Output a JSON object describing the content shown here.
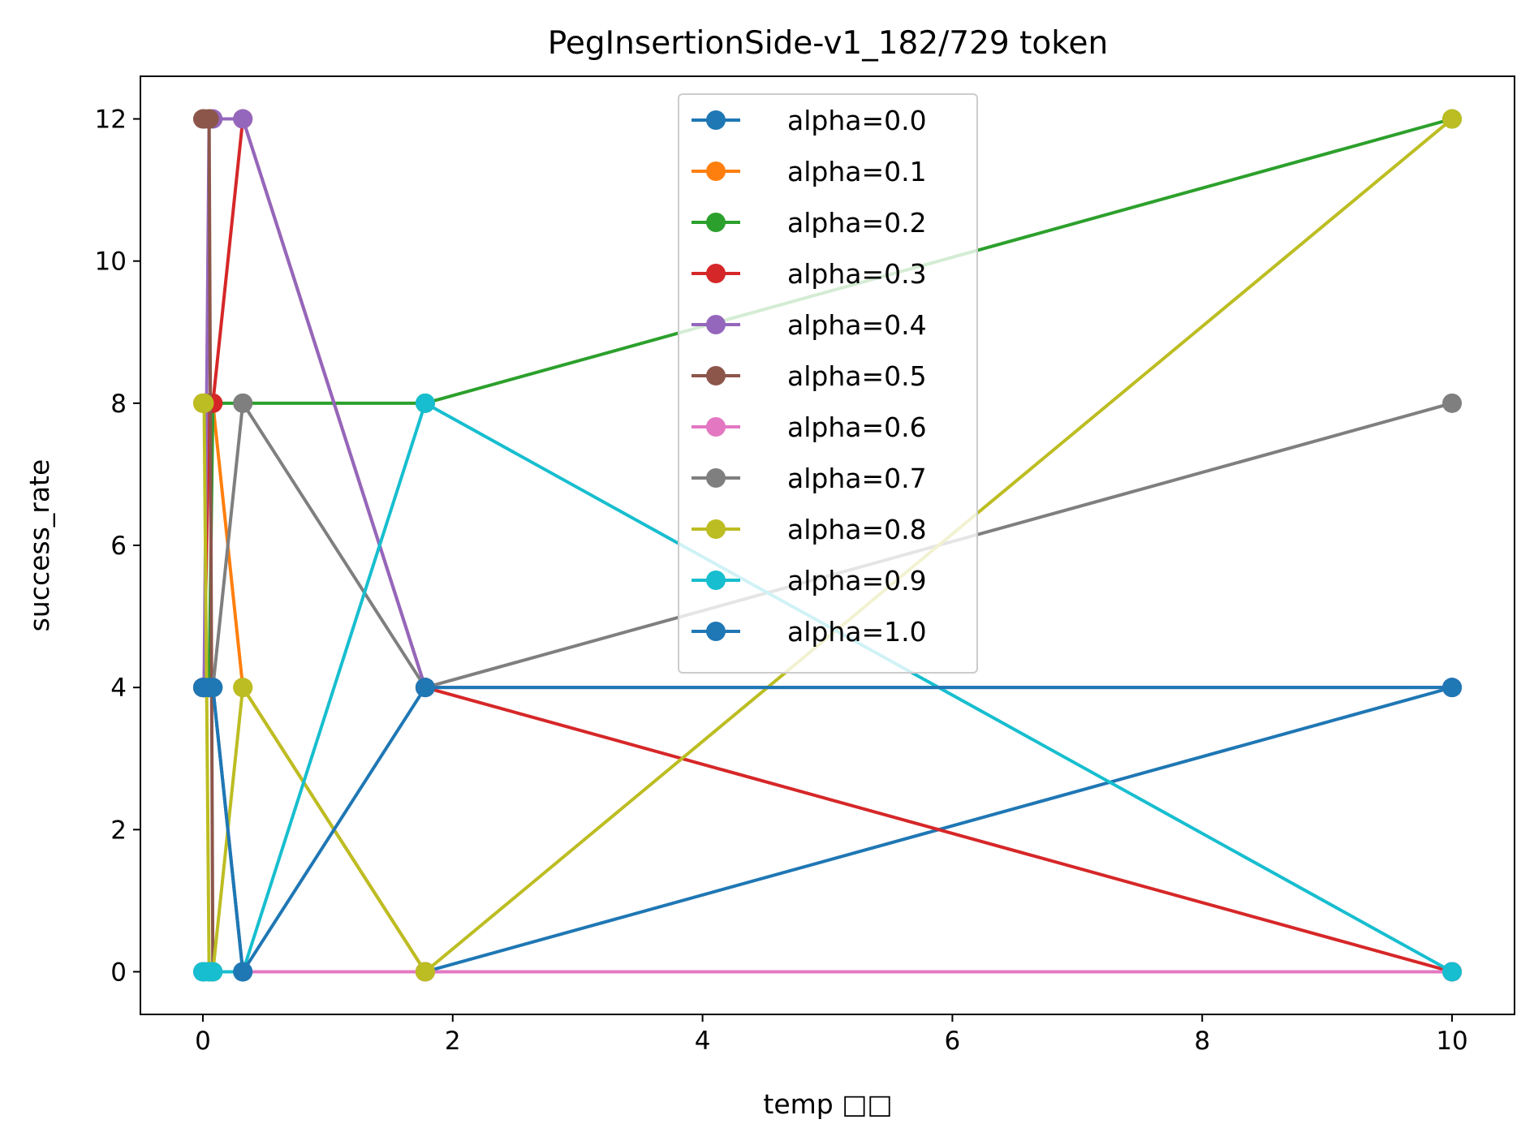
{
  "chart_data": {
    "type": "line",
    "title": "PegInsertionSide-v1_182/729 token",
    "xlabel": "temp □□",
    "ylabel": "success_rate",
    "xlim": [
      -0.5,
      10.5
    ],
    "ylim": [
      -0.6,
      12.6
    ],
    "xticks": [
      0,
      2,
      4,
      6,
      8,
      10
    ],
    "yticks": [
      0,
      2,
      4,
      6,
      8,
      10,
      12
    ],
    "grid": false,
    "legend_position": "top-center",
    "x": [
      0,
      0.01,
      0.05,
      0.08,
      0.32,
      1.78,
      10
    ],
    "series": [
      {
        "name": "alpha=0.0",
        "color": "#1f77b4",
        "values": [
          4,
          4,
          4,
          4,
          0,
          0,
          4
        ]
      },
      {
        "name": "alpha=0.1",
        "color": "#ff7f0e",
        "values": [
          8,
          8,
          8,
          8,
          4,
          0,
          0
        ]
      },
      {
        "name": "alpha=0.2",
        "color": "#2ca02c",
        "values": [
          4,
          4,
          4,
          8,
          8,
          8,
          12
        ]
      },
      {
        "name": "alpha=0.3",
        "color": "#d62728",
        "values": [
          4,
          4,
          8,
          8,
          12,
          4,
          0
        ]
      },
      {
        "name": "alpha=0.4",
        "color": "#9467bd",
        "values": [
          4,
          4,
          12,
          12,
          12,
          4,
          4
        ]
      },
      {
        "name": "alpha=0.5",
        "color": "#8c564b",
        "values": [
          12,
          12,
          12,
          0,
          0,
          0,
          0
        ]
      },
      {
        "name": "alpha=0.6",
        "color": "#e377c2",
        "values": [
          0,
          0,
          0,
          0,
          0,
          0,
          0
        ]
      },
      {
        "name": "alpha=0.7",
        "color": "#7f7f7f",
        "values": [
          4,
          4,
          4,
          4,
          8,
          4,
          8
        ]
      },
      {
        "name": "alpha=0.8",
        "color": "#bcbd22",
        "values": [
          8,
          8,
          0,
          0,
          4,
          0,
          12
        ]
      },
      {
        "name": "alpha=0.9",
        "color": "#17becf",
        "values": [
          0,
          0,
          0,
          0,
          0,
          8,
          0
        ]
      },
      {
        "name": "alpha=1.0",
        "color": "#1f77b4",
        "values": [
          4,
          4,
          4,
          4,
          0,
          4,
          4
        ]
      }
    ]
  }
}
